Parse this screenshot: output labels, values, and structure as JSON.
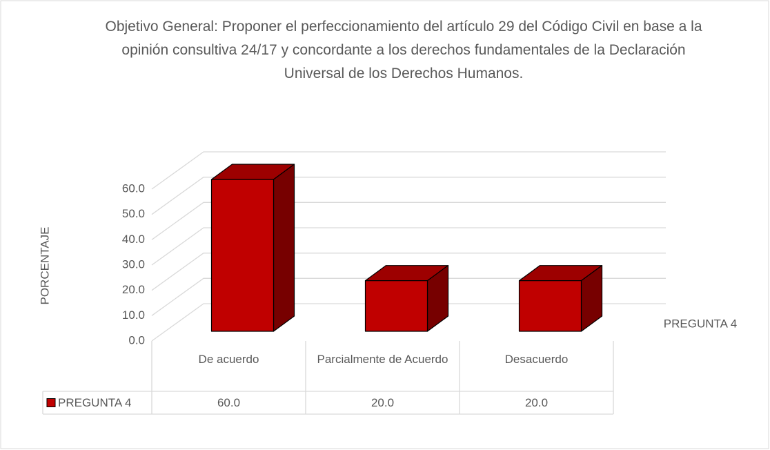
{
  "chart_data": {
    "type": "bar3d",
    "title": "Objetivo General: Proponer el perfeccionamiento del artículo 29 del Código Civil en base a la opinión consultiva 24/17 y concordante a los derechos fundamentales de la Declaración Universal de los Derechos Humanos.",
    "y_label": "PORCENTAJE",
    "categories": [
      "De acuerdo",
      "Parcialmente de Acuerdo",
      "Desacuerdo"
    ],
    "series": [
      {
        "name": "PREGUNTA 4",
        "color": "#c00000",
        "values": [
          60,
          20,
          20
        ],
        "value_labels": [
          "60.0",
          "20.0",
          "20.0"
        ]
      }
    ],
    "ylim": [
      0,
      60
    ],
    "yticks": [
      {
        "value": 0,
        "label": "0.0"
      },
      {
        "value": 10,
        "label": "10.0"
      },
      {
        "value": 20,
        "label": "20.0"
      },
      {
        "value": 30,
        "label": "30.0"
      },
      {
        "value": 40,
        "label": "40.0"
      },
      {
        "value": 50,
        "label": "50.0"
      },
      {
        "value": 60,
        "label": "60.0"
      }
    ],
    "grid": true,
    "data_table": true
  }
}
